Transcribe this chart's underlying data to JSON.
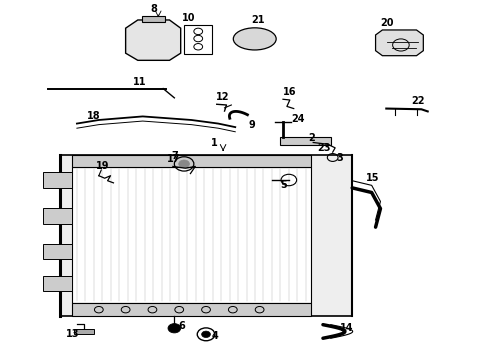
{
  "background_color": "#ffffff",
  "figsize": [
    4.9,
    3.6
  ],
  "dpi": 100
}
